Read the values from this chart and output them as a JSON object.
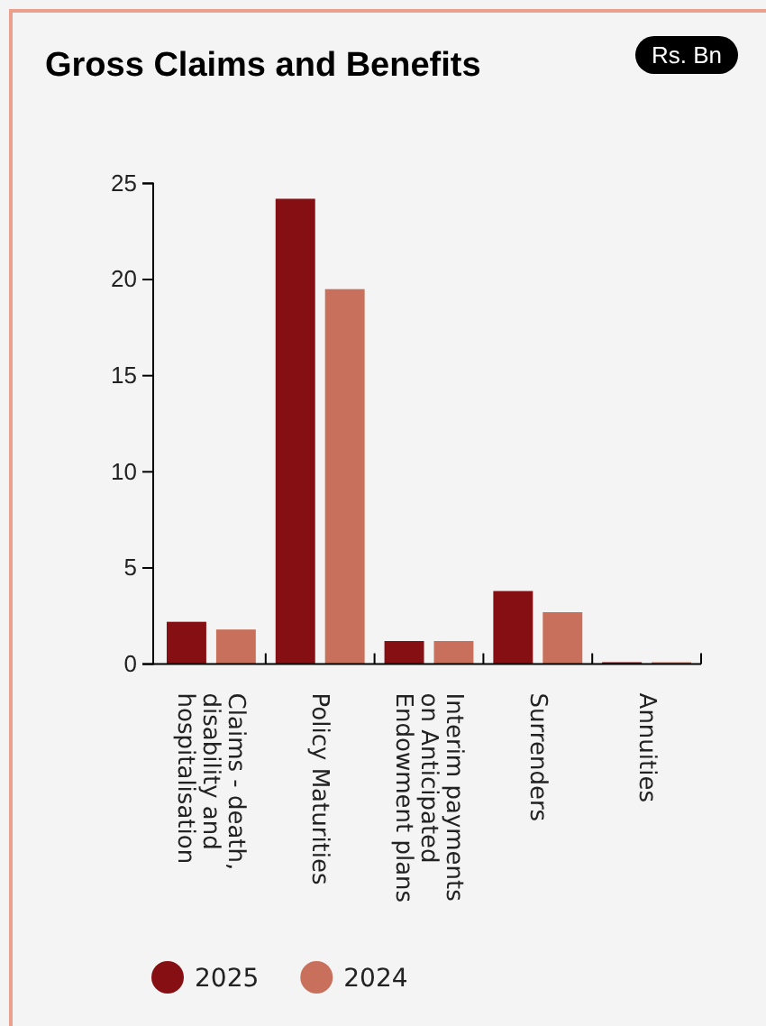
{
  "chart_data": {
    "type": "bar",
    "title": "Gross Claims and Benefits",
    "ylabel": "Rs. Bn",
    "categories": [
      "Claims - death, disability and hospitalisation",
      "Policy Maturities",
      "Interim payments on Anticipated Endowment plans",
      "Surrenders",
      "Annuities"
    ],
    "series": [
      {
        "name": "2025",
        "color": "#860f14",
        "values": [
          2.2,
          24.2,
          1.2,
          3.8,
          0.1
        ]
      },
      {
        "name": "2024",
        "color": "#c8705b",
        "values": [
          1.8,
          19.5,
          1.2,
          2.7,
          0.1
        ]
      }
    ],
    "ylim": [
      0,
      25
    ],
    "yticks": [
      0,
      5,
      10,
      15,
      20,
      25
    ],
    "grid": false,
    "legend": "bottom"
  }
}
